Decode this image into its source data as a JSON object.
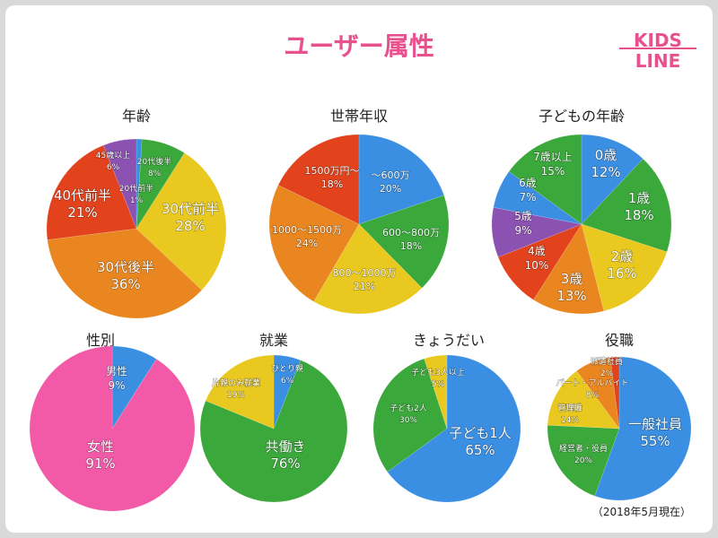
{
  "title": "ユーザー属性",
  "logo_text": "KIDS LINE",
  "footnote": "（2018年5月現在）",
  "colors": {
    "blue": "#3b8fe2",
    "green": "#3aa83a",
    "yellow": "#e9c820",
    "orange": "#ea861f",
    "red": "#e2421c",
    "purple": "#8b52b2",
    "pink": "#f25aa8",
    "accent": "#e8508e"
  },
  "chart_data": [
    {
      "type": "pie",
      "title": "年齢",
      "categories": [
        "20代前半",
        "20代後半",
        "30代前半",
        "30代後半",
        "40代前半",
        "45歳以上"
      ],
      "values": [
        1,
        8,
        28,
        36,
        21,
        6
      ],
      "colors": [
        "blue",
        "green",
        "yellow",
        "orange",
        "red",
        "purple"
      ]
    },
    {
      "type": "pie",
      "title": "世帯年収",
      "categories": [
        "〜600万",
        "600〜800万",
        "800〜1000万",
        "1000〜1500万",
        "1500万円〜"
      ],
      "values": [
        20,
        18,
        21,
        24,
        18
      ],
      "colors": [
        "blue",
        "green",
        "yellow",
        "orange",
        "red"
      ]
    },
    {
      "type": "pie",
      "title": "子どもの年齢",
      "categories": [
        "0歳",
        "1歳",
        "2歳",
        "3歳",
        "4歳",
        "5歳",
        "6歳",
        "7歳以上"
      ],
      "values": [
        12,
        18,
        16,
        13,
        10,
        9,
        7,
        15
      ],
      "colors": [
        "blue",
        "green",
        "yellow",
        "orange",
        "red",
        "purple",
        "blue",
        "green"
      ]
    },
    {
      "type": "pie",
      "title": "性別",
      "categories": [
        "男性",
        "女性"
      ],
      "values": [
        9,
        91
      ],
      "colors": [
        "blue",
        "pink"
      ]
    },
    {
      "type": "pie",
      "title": "就業",
      "categories": [
        "ひとり親",
        "共働き",
        "片親のみ就業"
      ],
      "values": [
        6,
        76,
        19
      ],
      "colors": [
        "blue",
        "green",
        "yellow"
      ]
    },
    {
      "type": "pie",
      "title": "きょうだい",
      "categories": [
        "子ども1人",
        "子ども2人",
        "子ども3人以上"
      ],
      "values": [
        65,
        30,
        5
      ],
      "colors": [
        "blue",
        "green",
        "yellow"
      ]
    },
    {
      "type": "pie",
      "title": "役職",
      "categories": [
        "一般社員",
        "経営者・役員",
        "管理職",
        "パート・アルバイト",
        "派遣社員"
      ],
      "values": [
        55,
        20,
        14,
        8,
        2
      ],
      "colors": [
        "blue",
        "green",
        "yellow",
        "orange",
        "red"
      ]
    }
  ]
}
